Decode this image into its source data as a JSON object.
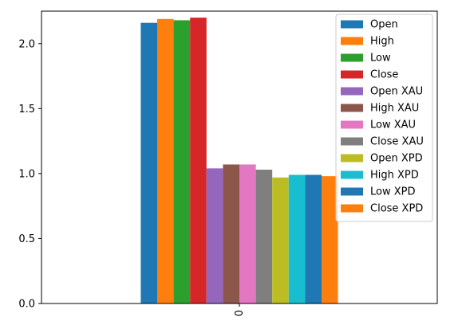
{
  "chart_data": {
    "type": "bar",
    "categories": [
      "0"
    ],
    "series": [
      {
        "name": "Open",
        "values": [
          2.16
        ],
        "color": "#1f77b4"
      },
      {
        "name": "High",
        "values": [
          2.19
        ],
        "color": "#ff7f0e"
      },
      {
        "name": "Low",
        "values": [
          2.18
        ],
        "color": "#2ca02c"
      },
      {
        "name": "Close",
        "values": [
          2.2
        ],
        "color": "#d62728"
      },
      {
        "name": "Open XAU",
        "values": [
          1.04
        ],
        "color": "#9467bd"
      },
      {
        "name": "High XAU",
        "values": [
          1.07
        ],
        "color": "#8c564b"
      },
      {
        "name": "Low XAU",
        "values": [
          1.07
        ],
        "color": "#e377c2"
      },
      {
        "name": "Close XAU",
        "values": [
          1.03
        ],
        "color": "#7f7f7f"
      },
      {
        "name": "Open XPD",
        "values": [
          0.97
        ],
        "color": "#bcbd22"
      },
      {
        "name": "High XPD",
        "values": [
          0.99
        ],
        "color": "#17becf"
      },
      {
        "name": "Low XPD",
        "values": [
          0.99
        ],
        "color": "#1f77b4"
      },
      {
        "name": "Close XPD",
        "values": [
          0.98
        ],
        "color": "#ff7f0e"
      }
    ],
    "ylim": [
      0,
      2.25
    ],
    "yticks": [
      "0.0",
      "0.5",
      "1.0",
      "1.5",
      "2.0"
    ],
    "ytick_values": [
      0,
      0.5,
      1.0,
      1.5,
      2.0
    ],
    "title": "",
    "xlabel": "",
    "ylabel": "",
    "grid": false,
    "legend_position": "top-right"
  }
}
